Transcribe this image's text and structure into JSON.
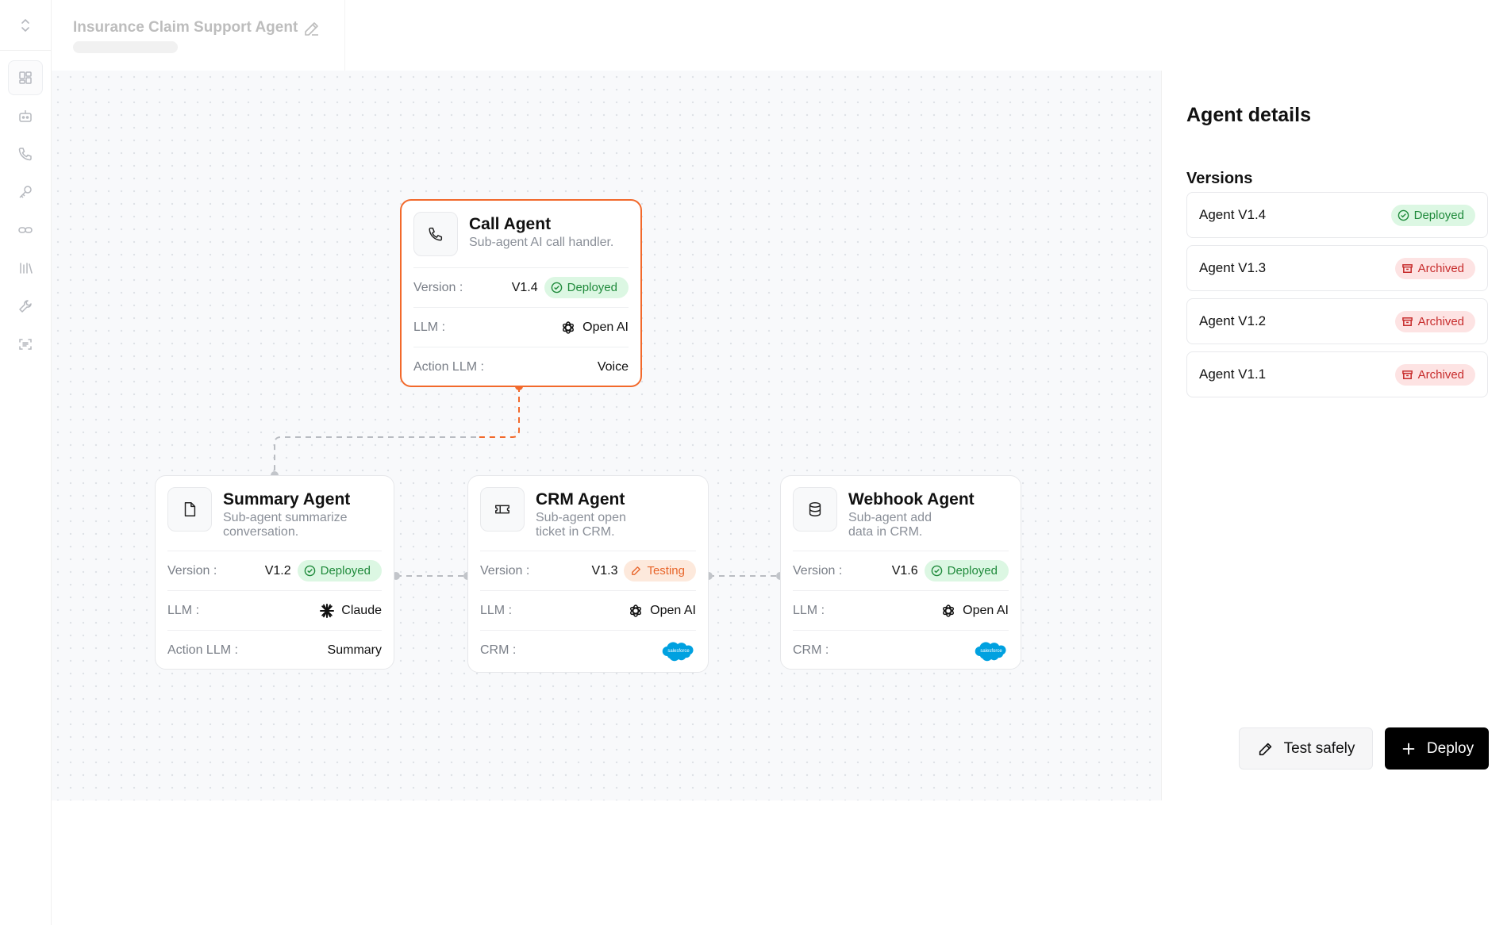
{
  "header": {
    "title": "Insurance Claim Support Agent"
  },
  "sidebar": {
    "items": [
      "dashboard-icon",
      "bot-icon",
      "phone-icon",
      "key-icon",
      "link-icon",
      "analytics-icon",
      "wrench-icon",
      "scan-icon"
    ]
  },
  "agents": {
    "call": {
      "name": "Call Agent",
      "desc": "Sub-agent AI call handler.",
      "version_label": "Version :",
      "version": "V1.4",
      "status": "Deployed",
      "llm_label": "LLM :",
      "llm": "Open AI",
      "action_label": "Action LLM :",
      "action": "Voice"
    },
    "summary": {
      "name": "Summary Agent",
      "desc": "Sub-agent summarize conversation.",
      "version_label": "Version :",
      "version": "V1.2",
      "status": "Deployed",
      "llm_label": "LLM :",
      "llm": "Claude",
      "action_label": "Action LLM :",
      "action": "Summary"
    },
    "crm": {
      "name": "CRM Agent",
      "desc": "Sub-agent open ticket in CRM.",
      "version_label": "Version :",
      "version": "V1.3",
      "status": "Testing",
      "llm_label": "LLM :",
      "llm": "Open AI",
      "crm_label": "CRM :",
      "crm_logo_text": "salesforce"
    },
    "webhook": {
      "name": "Webhook Agent",
      "desc": "Sub-agent add data in CRM.",
      "version_label": "Version :",
      "version": "V1.6",
      "status": "Deployed",
      "llm_label": "LLM :",
      "llm": "Open AI",
      "crm_label": "CRM :",
      "crm_logo_text": "salesforce"
    }
  },
  "panel": {
    "title": "Agent details",
    "versions_title": "Versions",
    "versions": [
      {
        "name": "Agent V1.4",
        "status": "Deployed"
      },
      {
        "name": "Agent V1.3",
        "status": "Archived"
      },
      {
        "name": "Agent V1.2",
        "status": "Archived"
      },
      {
        "name": "Agent V1.1",
        "status": "Archived"
      }
    ],
    "test_label": "Test safely",
    "deploy_label": "Deploy"
  },
  "colors": {
    "accent": "#f2692b",
    "deployed": "#1f8a3b",
    "testing": "#e8652a",
    "archived": "#c72c2c",
    "salesforce": "#00a1e0"
  }
}
